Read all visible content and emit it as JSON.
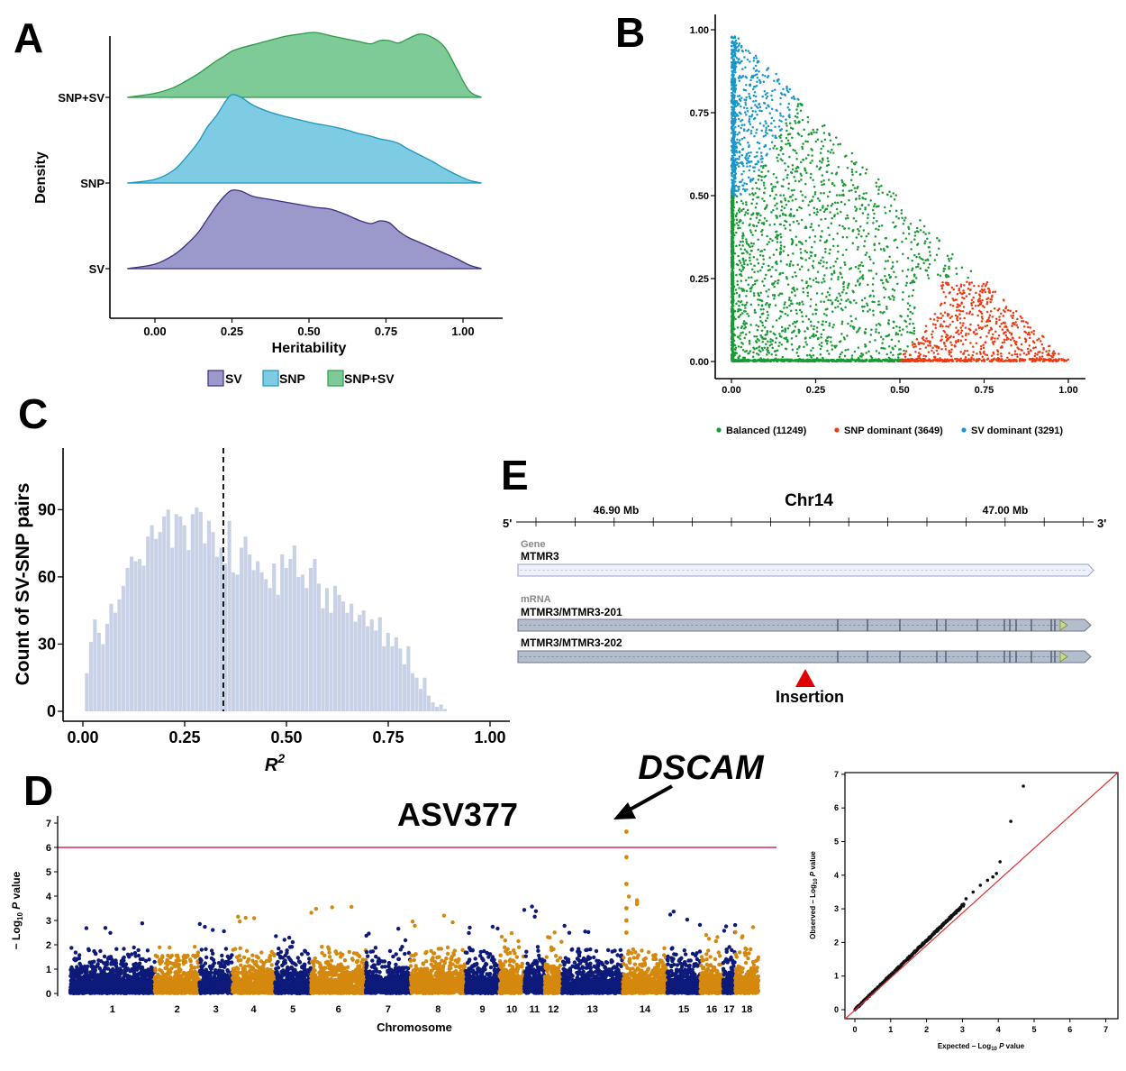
{
  "panel_labels": {
    "a": "A",
    "b": "B",
    "c": "C",
    "d": "D",
    "e": "E"
  },
  "colors": {
    "sv": "#9b98cc",
    "sv_line": "#3b2f7f",
    "snp": "#7ecbe4",
    "snp_line": "#1b96bf",
    "snpsv": "#7fcb97",
    "snpsv_line": "#2a9a4a",
    "hist": "#c9d1e6",
    "balanced": "#1a9a35",
    "snp_dom": "#ee3a13",
    "sv_dom": "#1a96c8",
    "manhattan_odd": "#0d1a7a",
    "manhattan_even": "#d4880d",
    "threshold": "#d7265a",
    "qq_line": "#e03030",
    "qq_points": "#111111",
    "insertion": "#e00000",
    "gene_fill": "#eef0fb",
    "mrna_fill": "#b3bdcc"
  },
  "chart_data": [
    {
      "id": "A",
      "type": "area",
      "title": "",
      "xlabel": "Heritability",
      "ylabel": "Density",
      "xlim": [
        -0.12,
        1.1
      ],
      "xticks": [
        "0.00",
        "0.25",
        "0.50",
        "0.75",
        "1.00"
      ],
      "xtick_values": [
        0,
        0.25,
        0.5,
        0.75,
        1.0
      ],
      "categories": [
        "SV",
        "SNP",
        "SNP+SV"
      ],
      "legend": [
        "SV",
        "SNP",
        "SNP+SV"
      ],
      "legend_position": "bottom",
      "series": [
        {
          "name": "SV",
          "x": [
            -0.09,
            0.0,
            0.06,
            0.1,
            0.14,
            0.17,
            0.2,
            0.23,
            0.25,
            0.28,
            0.32,
            0.37,
            0.42,
            0.47,
            0.52,
            0.57,
            0.62,
            0.66,
            0.7,
            0.73,
            0.76,
            0.79,
            0.82,
            0.86,
            0.9,
            0.94,
            0.98,
            1.02,
            1.06
          ],
          "y": [
            0.0,
            0.05,
            0.15,
            0.26,
            0.4,
            0.55,
            0.7,
            0.82,
            0.87,
            0.86,
            0.8,
            0.77,
            0.74,
            0.71,
            0.68,
            0.66,
            0.6,
            0.54,
            0.5,
            0.53,
            0.51,
            0.42,
            0.35,
            0.29,
            0.23,
            0.17,
            0.11,
            0.04,
            0.0
          ]
        },
        {
          "name": "SNP",
          "x": [
            -0.09,
            0.0,
            0.06,
            0.1,
            0.14,
            0.17,
            0.2,
            0.23,
            0.25,
            0.28,
            0.32,
            0.37,
            0.42,
            0.47,
            0.52,
            0.57,
            0.62,
            0.66,
            0.7,
            0.73,
            0.76,
            0.79,
            0.82,
            0.86,
            0.9,
            0.94,
            0.98,
            1.02,
            1.06
          ],
          "y": [
            0.0,
            0.04,
            0.14,
            0.28,
            0.45,
            0.62,
            0.75,
            0.91,
            0.98,
            0.95,
            0.86,
            0.79,
            0.74,
            0.7,
            0.66,
            0.63,
            0.59,
            0.55,
            0.52,
            0.49,
            0.47,
            0.44,
            0.38,
            0.31,
            0.24,
            0.16,
            0.09,
            0.03,
            0.0
          ]
        },
        {
          "name": "SNP+SV",
          "x": [
            -0.09,
            0.0,
            0.06,
            0.1,
            0.14,
            0.17,
            0.2,
            0.23,
            0.25,
            0.28,
            0.32,
            0.37,
            0.42,
            0.47,
            0.52,
            0.57,
            0.62,
            0.66,
            0.7,
            0.73,
            0.76,
            0.79,
            0.82,
            0.86,
            0.9,
            0.94,
            0.98,
            1.02,
            1.06
          ],
          "y": [
            0.0,
            0.05,
            0.12,
            0.2,
            0.29,
            0.37,
            0.45,
            0.52,
            0.57,
            0.61,
            0.65,
            0.7,
            0.75,
            0.78,
            0.8,
            0.76,
            0.72,
            0.69,
            0.66,
            0.7,
            0.7,
            0.67,
            0.72,
            0.78,
            0.74,
            0.62,
            0.35,
            0.08,
            0.0
          ]
        }
      ]
    },
    {
      "id": "B",
      "type": "scatter",
      "title": "",
      "xlim": [
        -0.05,
        1.05
      ],
      "ylim": [
        -0.05,
        1.05
      ],
      "xticks": [
        "0.00",
        "0.25",
        "0.50",
        "0.75",
        "1.00"
      ],
      "yticks": [
        "0.00",
        "0.25",
        "0.50",
        "0.75",
        "1.00"
      ],
      "tick_values": [
        0,
        0.25,
        0.5,
        0.75,
        1.0
      ],
      "legend_position": "bottom",
      "series": [
        {
          "name": "Balanced (11249)",
          "count": 11249,
          "region": "x + y <= 1, x < 0.5, y < 0.5 (plus triangle body)"
        },
        {
          "name": "SNP dominant (3649)",
          "count": 3649,
          "region": "x >= 0.5, y <= 0.25"
        },
        {
          "name": "SV dominant (3291)",
          "count": 3291,
          "region": "y >= 0.5, x <= 0.25"
        }
      ],
      "legend": [
        "Balanced (11249)",
        "SNP dominant (3649)",
        "SV dominant (3291)"
      ]
    },
    {
      "id": "C",
      "type": "bar",
      "title": "",
      "xlabel": "R",
      "xlabel_superscript": "2",
      "ylabel": "Count of SV-SNP pairs",
      "xlim": [
        -0.05,
        1.05
      ],
      "ylim": [
        -3,
        118
      ],
      "xticks": [
        "0.00",
        "0.25",
        "0.50",
        "0.75",
        "1.00"
      ],
      "xtick_values": [
        0,
        0.25,
        0.5,
        0.75,
        1.0
      ],
      "yticks": [
        "0",
        "30",
        "60",
        "90"
      ],
      "ytick_values": [
        0,
        30,
        60,
        90
      ],
      "mean_line": 0.345,
      "bin_start": 0.01,
      "bin_width": 0.01,
      "values": [
        17,
        31,
        41,
        35,
        30,
        39,
        48,
        44,
        50,
        56,
        64,
        69,
        67,
        68,
        65,
        78,
        83,
        77,
        80,
        87,
        90,
        73,
        88,
        87,
        83,
        72,
        88,
        91,
        89,
        75,
        85,
        80,
        69,
        73,
        66,
        85,
        62,
        61,
        73,
        78,
        70,
        63,
        67,
        62,
        59,
        55,
        66,
        52,
        70,
        64,
        68,
        74,
        60,
        61,
        55,
        64,
        68,
        57,
        46,
        55,
        44,
        56,
        52,
        49,
        44,
        48,
        40,
        43,
        45,
        38,
        41,
        36,
        42,
        29,
        35,
        29,
        33,
        28,
        21,
        29,
        17,
        15,
        10,
        15,
        7,
        4,
        2,
        3,
        1,
        0,
        0,
        0,
        0,
        0,
        0,
        0,
        0,
        0,
        0,
        0
      ]
    },
    {
      "id": "D-manhattan",
      "type": "scatter",
      "title": "ASV377",
      "annotation": "DSCAM",
      "xlabel": "Chromosome",
      "ylabel": "− Log10 P value",
      "ylim": [
        0,
        7
      ],
      "yticks": [
        "0",
        "1",
        "2",
        "3",
        "4",
        "5",
        "6",
        "7"
      ],
      "threshold": 6,
      "categories": [
        "1",
        "2",
        "3",
        "4",
        "5",
        "6",
        "7",
        "8",
        "9",
        "10",
        "11",
        "12",
        "13",
        "14",
        "15",
        "16",
        "17",
        "18"
      ],
      "chrom_sizes": [
        160,
        85,
        62,
        81,
        68,
        104,
        85,
        104,
        64,
        47,
        39,
        33,
        115,
        84,
        63,
        43,
        23,
        44
      ],
      "chrom_max": [
        2.9,
        2.0,
        2.9,
        3.3,
        2.6,
        3.8,
        2.7,
        3.3,
        2.8,
        2.5,
        3.9,
        2.6,
        3.0,
        4.0,
        3.5,
        2.4,
        2.9,
        2.8
      ],
      "peak_chromosome": "14",
      "peak_values": [
        6.65,
        5.6,
        4.5,
        3.5,
        3.0,
        2.5
      ]
    },
    {
      "id": "D-qq",
      "type": "scatter",
      "xlabel": "Expected  − Log10 P value",
      "ylabel": "Observed  − Log10 P value",
      "xlim": [
        -0.3,
        7.3
      ],
      "ylim": [
        -0.2,
        7.2
      ],
      "xticks": [
        "0",
        "1",
        "2",
        "3",
        "4",
        "5",
        "6",
        "7"
      ],
      "yticks": [
        "0",
        "1",
        "2",
        "3",
        "4",
        "5",
        "6",
        "7"
      ],
      "tail_points": [
        [
          3.1,
          3.3
        ],
        [
          3.3,
          3.5
        ],
        [
          3.5,
          3.7
        ],
        [
          3.7,
          3.85
        ],
        [
          3.85,
          3.95
        ],
        [
          3.95,
          4.05
        ],
        [
          4.05,
          4.4
        ],
        [
          4.35,
          5.6
        ],
        [
          4.7,
          6.65
        ]
      ]
    }
  ],
  "panel_e": {
    "chrom": "Chr14",
    "end5": "5'",
    "end3": "3'",
    "tick_left": "46.90 Mb",
    "tick_right": "47.00 Mb",
    "gene_section": "Gene",
    "gene_name": "MTMR3",
    "mrna_section": "mRNA",
    "mrna1": "MTMR3/MTMR3-201",
    "mrna2": "MTMR3/MTMR3-202",
    "insertion_label": "Insertion"
  }
}
